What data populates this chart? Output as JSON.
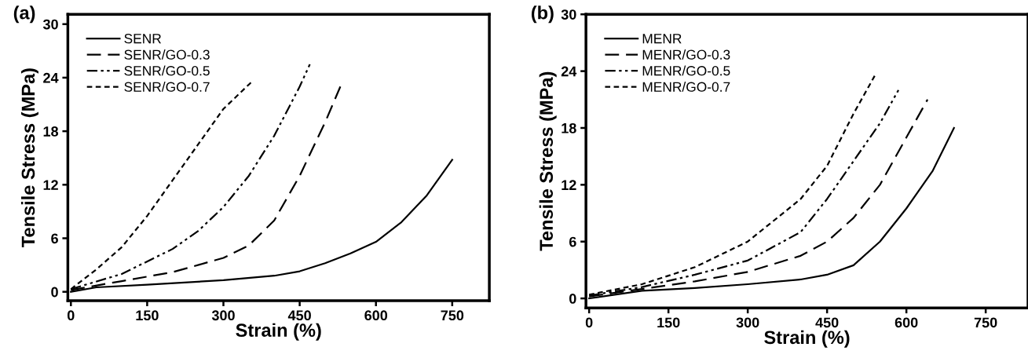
{
  "chart_data": [
    {
      "type": "line",
      "annotations": [
        "(a)"
      ],
      "xlabel": "Strain (%)",
      "ylabel": "Tensile Stress (MPa)",
      "xlim": [
        -6,
        823
      ],
      "ylim": [
        -1,
        31.1
      ],
      "xticks": [
        0,
        150,
        300,
        450,
        600,
        750
      ],
      "yticks": [
        0,
        6,
        12,
        18,
        24,
        30
      ],
      "grid": false,
      "legend": "top left",
      "series": [
        {
          "name": "SENR",
          "color": "#000000",
          "line_style": "solid",
          "x": [
            0,
            50,
            150,
            300,
            400,
            450,
            500,
            550,
            600,
            650,
            700,
            750
          ],
          "values": [
            0,
            0.5,
            0.8,
            1.3,
            1.8,
            2.3,
            3.2,
            4.3,
            5.6,
            7.8,
            10.8,
            14.8
          ]
        },
        {
          "name": "SENR/GO-0.3",
          "color": "#000000",
          "line_style": "dashed",
          "x": [
            0,
            100,
            200,
            300,
            350,
            400,
            450,
            500,
            530
          ],
          "values": [
            0.2,
            1.2,
            2.2,
            3.8,
            5.2,
            8,
            13,
            19,
            23
          ]
        },
        {
          "name": "SENR/GO-0.5",
          "color": "#000000",
          "line_style": "dashdotdot",
          "x": [
            0,
            100,
            200,
            250,
            300,
            350,
            400,
            450,
            470
          ],
          "values": [
            0.3,
            2,
            4.8,
            6.8,
            9.5,
            13,
            17.5,
            23,
            25.5
          ]
        },
        {
          "name": "SENR/GO-0.7",
          "color": "#000000",
          "line_style": "shortdash",
          "x": [
            0,
            50,
            100,
            150,
            200,
            250,
            300,
            355
          ],
          "values": [
            0.3,
            2.5,
            5,
            8.5,
            12.5,
            16.5,
            20.5,
            23.5
          ]
        }
      ]
    },
    {
      "type": "line",
      "annotations": [
        "(b)"
      ],
      "xlabel": "Strain (%)",
      "ylabel": "Tensile Stress (MPa)",
      "xlim": [
        -6,
        830
      ],
      "ylim": [
        -1,
        30
      ],
      "xticks": [
        0,
        150,
        300,
        450,
        600,
        750
      ],
      "yticks": [
        0,
        6,
        12,
        18,
        24,
        30
      ],
      "grid": false,
      "legend": "top left",
      "series": [
        {
          "name": "MENR",
          "color": "#000000",
          "line_style": "solid",
          "x": [
            0,
            100,
            200,
            300,
            400,
            450,
            500,
            550,
            600,
            650,
            690
          ],
          "values": [
            0,
            0.8,
            1.1,
            1.5,
            2,
            2.5,
            3.5,
            6,
            9.5,
            13.5,
            18
          ]
        },
        {
          "name": "MENR/GO-0.3",
          "color": "#000000",
          "line_style": "dashed",
          "x": [
            0,
            100,
            200,
            300,
            400,
            450,
            500,
            550,
            600,
            640
          ],
          "values": [
            0.2,
            1,
            1.8,
            2.8,
            4.5,
            6,
            8.5,
            12,
            17,
            21
          ]
        },
        {
          "name": "MENR/GO-0.5",
          "color": "#000000",
          "line_style": "dashdotdot",
          "x": [
            0,
            100,
            200,
            300,
            400,
            450,
            500,
            550,
            585
          ],
          "values": [
            0.3,
            1.2,
            2.5,
            4,
            7,
            10.5,
            14.5,
            18.5,
            22
          ]
        },
        {
          "name": "MENR/GO-0.7",
          "color": "#000000",
          "line_style": "shortdash",
          "x": [
            0,
            100,
            200,
            300,
            400,
            450,
            500,
            540
          ],
          "values": [
            0.4,
            1.5,
            3.3,
            6,
            10.5,
            14,
            19.5,
            23.5
          ]
        }
      ]
    }
  ]
}
